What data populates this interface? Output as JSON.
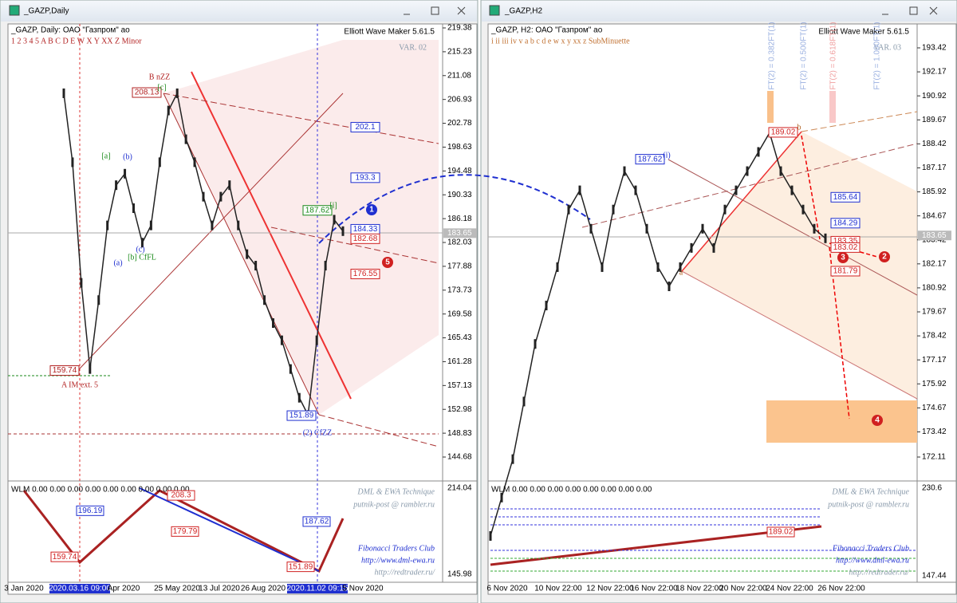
{
  "windows": [
    {
      "title": "_GAZP,Daily",
      "header": "_GAZP, Daily:  ОАО \"Газпром\" ао",
      "tool": "Elliott Wave Maker 5.61.5",
      "waves": "1   2   3   4   5   A   B   C   D   E   W   X   Y   XX   Z   Minor",
      "variant": "VAR. 02",
      "ylim": [
        144.68,
        219.38
      ],
      "yticks": [
        219.38,
        215.23,
        211.08,
        206.93,
        202.78,
        198.63,
        194.48,
        190.33,
        186.18,
        182.03,
        177.88,
        173.73,
        169.58,
        165.43,
        161.28,
        157.13,
        152.98,
        148.83,
        144.68
      ],
      "current": 183.65,
      "closes": [
        208,
        196,
        175,
        160,
        172,
        185,
        192,
        194,
        188,
        182,
        185,
        196,
        205,
        208,
        200,
        196,
        190,
        185,
        190,
        192,
        185,
        180,
        178,
        172,
        168,
        165,
        160,
        155,
        152,
        165,
        178,
        186,
        184
      ],
      "dates": [
        "3 Jan 2020",
        "2020.03.16 09:00",
        "Apr 2020",
        "25 May 2020",
        "13 Jul 2020",
        "26 Aug 2020",
        "2020.11.02 09:15",
        "5 Nov 2020"
      ],
      "boxes": [
        {
          "value": 208.13,
          "color": "#b22222"
        },
        {
          "value": 202.1,
          "color": "#1f2fd0"
        },
        {
          "value": 193.3,
          "color": "#1f2fd0"
        },
        {
          "value": 187.62,
          "color": "#1a8a1a"
        },
        {
          "value": 184.33,
          "color": "#1f2fd0"
        },
        {
          "value": 182.68,
          "color": "#d02020"
        },
        {
          "value": 176.55,
          "color": "#d02020"
        },
        {
          "value": 159.74,
          "color": "#b22222"
        },
        {
          "value": 151.89,
          "color": "#1f2fd0"
        }
      ],
      "labels": [
        "B nZZ",
        "A IM ext. 5",
        "(2) CfZZ",
        "[b] CfFL",
        "[c]",
        "[a]",
        "(b)",
        "(c)",
        "(a)",
        "[i]",
        "1",
        "5"
      ],
      "indicator": {
        "header": "WLM 0.00 0.00 0.00 0.00 0.00 0.00 0.00 0.00 0.00",
        "ylim": [
          145.98,
          214.04
        ],
        "boxes": [
          {
            "value": 196.19,
            "color": "#1f2fd0"
          },
          {
            "value": 208.3,
            "color": "#d02020"
          },
          {
            "value": 179.79,
            "color": "#d02020"
          },
          {
            "value": 159.74,
            "color": "#d02020"
          },
          {
            "value": 151.89,
            "color": "#d02020"
          },
          {
            "value": 187.62,
            "color": "#1f2fd0"
          }
        ],
        "credits": [
          "DML & EWA Technique",
          "putnik-post @ rambler.ru",
          "Fibonacci   Traders   Club",
          "http://www.dml-ewa.ru",
          "http://redtrader.ru/"
        ]
      }
    },
    {
      "title": "_GAZP,H2",
      "header": "_GAZP, H2:  ОАО \"Газпром\" ао",
      "tool": "Elliott Wave Maker 5.61.5",
      "waves": "i    ii    iii    iv    v    a    b    c    d    e    w    x    y    xx    z    SubMinuette",
      "variant": "VAR. 03",
      "ylim": [
        172.11,
        193.42
      ],
      "yticks": [
        193.42,
        192.17,
        190.92,
        189.67,
        188.42,
        187.17,
        185.92,
        184.67,
        183.42,
        182.17,
        180.92,
        179.67,
        178.42,
        177.17,
        175.92,
        174.67,
        173.42,
        172.11
      ],
      "current": 183.65,
      "closes": [
        168,
        170,
        172,
        175,
        178,
        180,
        182,
        185,
        186,
        184,
        182,
        185,
        187,
        186,
        184,
        182,
        181,
        182,
        183,
        184,
        183,
        185,
        186,
        187,
        188,
        189,
        187,
        186,
        185,
        184,
        183.5
      ],
      "dates": [
        "6 Nov 2020",
        "10 Nov 22:00",
        "12 Nov 22:00",
        "16 Nov 22:00",
        "18 Nov 22:00",
        "20 Nov 22:00",
        "24 Nov 22:00",
        "26 Nov 22:00"
      ],
      "boxes": [
        {
          "value": 189.02,
          "color": "#d02020"
        },
        {
          "value": 187.62,
          "color": "#1f2fd0"
        },
        {
          "value": 185.64,
          "color": "#1f2fd0"
        },
        {
          "value": 184.29,
          "color": "#1f2fd0"
        },
        {
          "value": 183.35,
          "color": "#d02020"
        },
        {
          "value": 183.02,
          "color": "#d02020"
        },
        {
          "value": 181.79,
          "color": "#d02020"
        }
      ],
      "labels": [
        "(i)",
        "b",
        "a",
        "FT(2) = 0.382FT(1)",
        "FT(2) = 0.500FT(1)",
        "FT(2) = 0.618FT(1)",
        "FT(2) = 1.000FT(1)",
        "2",
        "3",
        "4"
      ],
      "indicator": {
        "header": "WLM 0.00 0.00 0.00 0.00 0.00 0.00 0.00 0.00",
        "ylim": [
          147.44,
          230.6
        ],
        "boxes": [
          {
            "value": 189.02,
            "color": "#d02020"
          }
        ],
        "credits": [
          "DML & EWA Technique",
          "putnik-post @ rambler.ru",
          "Fibonacci   Traders   Club",
          "http://www.dml-ewa.ru",
          "http://redtrader.ru/"
        ]
      }
    }
  ]
}
